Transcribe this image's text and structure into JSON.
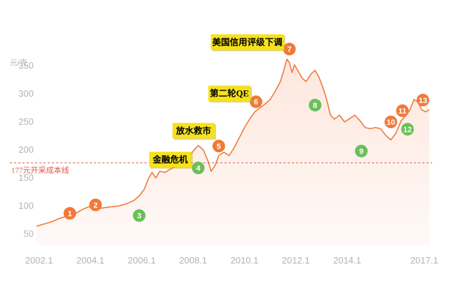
{
  "chart_data": {
    "type": "area",
    "title": "",
    "xlabel": "",
    "ylabel": "元/克",
    "ylim": [
      30,
      380
    ],
    "xlim": [
      2002.0,
      2017.3
    ],
    "grid": false,
    "x_ticks": [
      {
        "value": 2002.1,
        "label": "2002.1"
      },
      {
        "value": 2004.1,
        "label": "2004.1"
      },
      {
        "value": 2006.1,
        "label": "2006.1"
      },
      {
        "value": 2008.1,
        "label": "2008.1"
      },
      {
        "value": 2010.1,
        "label": "2010.1"
      },
      {
        "value": 2012.1,
        "label": "2012.1"
      },
      {
        "value": 2014.1,
        "label": "2014.1"
      },
      {
        "value": 2017.1,
        "label": "2017.1"
      }
    ],
    "y_ticks": [
      {
        "value": 50,
        "label": "50"
      },
      {
        "value": 100,
        "label": "100"
      },
      {
        "value": 150,
        "label": "150"
      },
      {
        "value": 200,
        "label": "200"
      },
      {
        "value": 250,
        "label": "250"
      },
      {
        "value": 300,
        "label": "300"
      },
      {
        "value": 350,
        "label": "350"
      }
    ],
    "reference_line": {
      "value": 177,
      "label": "177元开采成本线",
      "color": "#e0564a"
    },
    "series": [
      {
        "color": "#f07a3a",
        "fill": "#fde6dc",
        "points": [
          [
            2002.0,
            64
          ],
          [
            2002.3,
            68
          ],
          [
            2002.6,
            72
          ],
          [
            2002.9,
            78
          ],
          [
            2003.2,
            82
          ],
          [
            2003.5,
            86
          ],
          [
            2003.8,
            94
          ],
          [
            2004.0,
            98
          ],
          [
            2004.3,
            102
          ],
          [
            2004.5,
            96
          ],
          [
            2004.8,
            98
          ],
          [
            2005.2,
            100
          ],
          [
            2005.5,
            104
          ],
          [
            2005.8,
            110
          ],
          [
            2006.0,
            118
          ],
          [
            2006.2,
            130
          ],
          [
            2006.35,
            148
          ],
          [
            2006.5,
            160
          ],
          [
            2006.65,
            150
          ],
          [
            2006.8,
            162
          ],
          [
            2007.0,
            160
          ],
          [
            2007.3,
            168
          ],
          [
            2007.6,
            174
          ],
          [
            2007.9,
            184
          ],
          [
            2008.1,
            198
          ],
          [
            2008.3,
            208
          ],
          [
            2008.5,
            200
          ],
          [
            2008.7,
            178
          ],
          [
            2008.8,
            162
          ],
          [
            2008.95,
            172
          ],
          [
            2009.1,
            190
          ],
          [
            2009.3,
            196
          ],
          [
            2009.5,
            190
          ],
          [
            2009.7,
            204
          ],
          [
            2009.9,
            222
          ],
          [
            2010.1,
            240
          ],
          [
            2010.3,
            255
          ],
          [
            2010.5,
            268
          ],
          [
            2010.7,
            275
          ],
          [
            2010.9,
            282
          ],
          [
            2011.1,
            290
          ],
          [
            2011.3,
            305
          ],
          [
            2011.5,
            322
          ],
          [
            2011.65,
            345
          ],
          [
            2011.75,
            362
          ],
          [
            2011.85,
            356
          ],
          [
            2011.95,
            338
          ],
          [
            2012.05,
            352
          ],
          [
            2012.2,
            340
          ],
          [
            2012.35,
            328
          ],
          [
            2012.5,
            322
          ],
          [
            2012.7,
            336
          ],
          [
            2012.85,
            342
          ],
          [
            2013.0,
            330
          ],
          [
            2013.15,
            312
          ],
          [
            2013.3,
            290
          ],
          [
            2013.45,
            262
          ],
          [
            2013.6,
            255
          ],
          [
            2013.8,
            262
          ],
          [
            2014.0,
            250
          ],
          [
            2014.2,
            256
          ],
          [
            2014.4,
            262
          ],
          [
            2014.6,
            252
          ],
          [
            2014.8,
            240
          ],
          [
            2015.0,
            238
          ],
          [
            2015.2,
            240
          ],
          [
            2015.4,
            238
          ],
          [
            2015.6,
            226
          ],
          [
            2015.8,
            218
          ],
          [
            2016.0,
            230
          ],
          [
            2016.2,
            252
          ],
          [
            2016.4,
            262
          ],
          [
            2016.55,
            272
          ],
          [
            2016.7,
            290
          ],
          [
            2016.85,
            286
          ],
          [
            2017.0,
            272
          ],
          [
            2017.15,
            268
          ],
          [
            2017.3,
            272
          ]
        ]
      }
    ],
    "markers": [
      {
        "id": "1",
        "x": 2003.3,
        "y": 87,
        "color": "#f07a3a"
      },
      {
        "id": "2",
        "x": 2004.3,
        "y": 102,
        "color": "#f07a3a"
      },
      {
        "id": "3",
        "x": 2006.0,
        "y": 83,
        "color": "#6bbf59"
      },
      {
        "id": "4",
        "x": 2008.3,
        "y": 168,
        "color": "#6bbf59"
      },
      {
        "id": "5",
        "x": 2009.1,
        "y": 207,
        "color": "#f07a3a"
      },
      {
        "id": "6",
        "x": 2010.55,
        "y": 286,
        "color": "#f07a3a"
      },
      {
        "id": "7",
        "x": 2011.85,
        "y": 380,
        "color": "#f07a3a"
      },
      {
        "id": "8",
        "x": 2012.85,
        "y": 280,
        "color": "#6bbf59"
      },
      {
        "id": "9",
        "x": 2014.65,
        "y": 198,
        "color": "#6bbf59"
      },
      {
        "id": "10",
        "x": 2015.8,
        "y": 250,
        "color": "#f07a3a"
      },
      {
        "id": "11",
        "x": 2016.25,
        "y": 270,
        "color": "#f07a3a"
      },
      {
        "id": "12",
        "x": 2016.45,
        "y": 237,
        "color": "#6bbf59"
      },
      {
        "id": "13",
        "x": 2017.05,
        "y": 289,
        "color": "#f07a3a"
      }
    ],
    "annotations": [
      {
        "text": "美国信用评级下调",
        "anchor": "7"
      },
      {
        "text": "第二轮QE",
        "anchor": "6"
      },
      {
        "text": "放水救市",
        "anchor": "5"
      },
      {
        "text": "金融危机",
        "anchor": "4"
      }
    ]
  }
}
